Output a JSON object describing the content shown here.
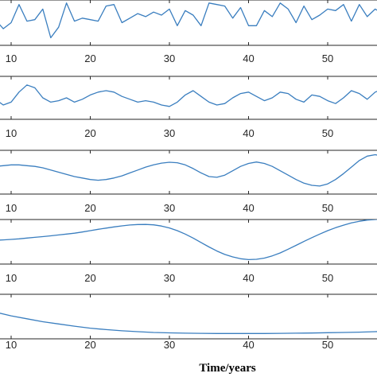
{
  "colors": {
    "line": "#3a7ebf",
    "axes": "#262626",
    "background": "#ffffff"
  },
  "chart_data": [
    {
      "type": "line",
      "xlim": [
        4,
        57
      ],
      "ylim": [
        -1.5,
        1.5
      ],
      "xticks": [
        10,
        20,
        30,
        40,
        50
      ],
      "xtick_labels": [
        "10",
        "20",
        "30",
        "40",
        "50"
      ],
      "grid": false,
      "series": [
        {
          "x": [
            4,
            5,
            6,
            7,
            8,
            9,
            10,
            11,
            12,
            13,
            14,
            15,
            16,
            17,
            18,
            19,
            20,
            21,
            22,
            23,
            24,
            25,
            26,
            27,
            28,
            29,
            30,
            31,
            32,
            33,
            34,
            35,
            36,
            37,
            38,
            39,
            40,
            41,
            42,
            43,
            44,
            45,
            46,
            47,
            48,
            49,
            50,
            51,
            52,
            53,
            54,
            55,
            56,
            57
          ],
          "values": [
            0.0,
            0.6,
            0.1,
            1.3,
            0.2,
            -0.4,
            0.0,
            1.2,
            0.1,
            0.2,
            0.9,
            -1.0,
            -0.3,
            1.3,
            0.1,
            0.3,
            0.2,
            0.1,
            1.1,
            1.2,
            0.0,
            0.3,
            0.6,
            0.4,
            0.7,
            0.5,
            0.9,
            -0.2,
            0.8,
            0.5,
            -0.2,
            1.3,
            1.2,
            1.1,
            0.3,
            1.0,
            -0.2,
            -0.2,
            0.8,
            0.4,
            1.3,
            0.9,
            0.0,
            1.1,
            0.2,
            0.5,
            0.9,
            0.8,
            1.2,
            0.1,
            1.2,
            0.4,
            0.9,
            0.6
          ]
        }
      ]
    },
    {
      "type": "line",
      "xlim": [
        4,
        57
      ],
      "ylim": [
        -1.5,
        1.5
      ],
      "xticks": [
        10,
        20,
        30,
        40,
        50
      ],
      "xtick_labels": [
        "10",
        "20",
        "30",
        "40",
        "50"
      ],
      "grid": false,
      "series": [
        {
          "x": [
            4,
            5,
            6,
            7,
            8,
            9,
            10,
            11,
            12,
            13,
            14,
            15,
            16,
            17,
            18,
            19,
            20,
            21,
            22,
            23,
            24,
            25,
            26,
            27,
            28,
            29,
            30,
            31,
            32,
            33,
            34,
            35,
            36,
            37,
            38,
            39,
            40,
            41,
            42,
            43,
            44,
            45,
            46,
            47,
            48,
            49,
            50,
            51,
            52,
            53,
            54,
            55,
            56,
            57
          ],
          "values": [
            -0.7,
            -0.5,
            -0.7,
            -0.3,
            -0.1,
            -0.5,
            -0.3,
            0.4,
            0.9,
            0.7,
            0.0,
            -0.3,
            -0.2,
            0.0,
            -0.3,
            -0.1,
            0.2,
            0.4,
            0.5,
            0.4,
            0.1,
            -0.1,
            -0.3,
            -0.2,
            -0.3,
            -0.5,
            -0.6,
            -0.3,
            0.2,
            0.5,
            0.1,
            -0.3,
            -0.5,
            -0.4,
            0.0,
            0.3,
            0.4,
            0.1,
            -0.2,
            0.0,
            0.4,
            0.3,
            -0.1,
            -0.3,
            0.2,
            0.1,
            -0.2,
            -0.4,
            0.0,
            0.5,
            0.3,
            -0.1,
            0.4,
            0.6
          ]
        }
      ]
    },
    {
      "type": "line",
      "xlim": [
        4,
        57
      ],
      "ylim": [
        -1.5,
        1.5
      ],
      "xticks": [
        10,
        20,
        30,
        40,
        50
      ],
      "xtick_labels": [
        "10",
        "20",
        "30",
        "40",
        "50"
      ],
      "grid": false,
      "series": [
        {
          "x": [
            4,
            5,
            6,
            7,
            8,
            9,
            10,
            11,
            12,
            13,
            14,
            15,
            16,
            17,
            18,
            19,
            20,
            21,
            22,
            23,
            24,
            25,
            26,
            27,
            28,
            29,
            30,
            31,
            32,
            33,
            34,
            35,
            36,
            37,
            38,
            39,
            40,
            41,
            42,
            43,
            44,
            45,
            46,
            47,
            48,
            49,
            50,
            51,
            52,
            53,
            54,
            55,
            56,
            57
          ],
          "values": [
            0.1,
            0.2,
            0.3,
            0.4,
            0.4,
            0.45,
            0.5,
            0.5,
            0.45,
            0.4,
            0.3,
            0.15,
            0.0,
            -0.15,
            -0.3,
            -0.4,
            -0.5,
            -0.55,
            -0.5,
            -0.4,
            -0.25,
            -0.05,
            0.15,
            0.35,
            0.5,
            0.62,
            0.68,
            0.65,
            0.5,
            0.25,
            -0.05,
            -0.3,
            -0.35,
            -0.2,
            0.1,
            0.4,
            0.6,
            0.7,
            0.6,
            0.4,
            0.1,
            -0.2,
            -0.5,
            -0.75,
            -0.9,
            -0.95,
            -0.8,
            -0.5,
            -0.1,
            0.35,
            0.8,
            1.1,
            1.2,
            1.1
          ]
        }
      ]
    },
    {
      "type": "line",
      "xlim": [
        4,
        57
      ],
      "ylim": [
        -1.5,
        1.5
      ],
      "xticks": [
        10,
        20,
        30,
        40,
        50
      ],
      "xtick_labels": [
        "10",
        "20",
        "30",
        "40",
        "50"
      ],
      "grid": false,
      "series": [
        {
          "x": [
            4,
            5,
            6,
            7,
            8,
            9,
            10,
            11,
            12,
            13,
            14,
            15,
            16,
            17,
            18,
            19,
            20,
            21,
            22,
            23,
            24,
            25,
            26,
            27,
            28,
            29,
            30,
            31,
            32,
            33,
            34,
            35,
            36,
            37,
            38,
            39,
            40,
            41,
            42,
            43,
            44,
            45,
            46,
            47,
            48,
            49,
            50,
            51,
            52,
            53,
            54,
            55,
            56,
            57
          ],
          "values": [
            0.0,
            0.02,
            0.05,
            0.08,
            0.1,
            0.13,
            0.16,
            0.2,
            0.25,
            0.3,
            0.35,
            0.4,
            0.46,
            0.52,
            0.58,
            0.66,
            0.75,
            0.84,
            0.92,
            1.0,
            1.07,
            1.13,
            1.16,
            1.17,
            1.14,
            1.06,
            0.93,
            0.75,
            0.52,
            0.25,
            -0.05,
            -0.35,
            -0.62,
            -0.85,
            -1.02,
            -1.14,
            -1.2,
            -1.18,
            -1.1,
            -0.95,
            -0.75,
            -0.5,
            -0.24,
            0.02,
            0.28,
            0.52,
            0.75,
            0.95,
            1.12,
            1.27,
            1.38,
            1.46,
            1.5,
            1.52
          ]
        }
      ]
    },
    {
      "type": "line",
      "xlim": [
        4,
        57
      ],
      "ylim": [
        -1.5,
        1.5
      ],
      "xticks": [
        10,
        20,
        30,
        40,
        50
      ],
      "xtick_labels": [
        "10",
        "20",
        "30",
        "40",
        "50"
      ],
      "xlabel": "Time/years",
      "grid": false,
      "series": [
        {
          "x": [
            4,
            6,
            8,
            10,
            12,
            14,
            16,
            18,
            20,
            22,
            24,
            26,
            28,
            30,
            32,
            34,
            36,
            38,
            40,
            42,
            44,
            46,
            48,
            50,
            52,
            54,
            56,
            57
          ],
          "values": [
            0.95,
            0.6,
            0.3,
            0.05,
            -0.15,
            -0.35,
            -0.5,
            -0.65,
            -0.78,
            -0.88,
            -0.96,
            -1.02,
            -1.07,
            -1.1,
            -1.12,
            -1.13,
            -1.14,
            -1.14,
            -1.14,
            -1.14,
            -1.13,
            -1.12,
            -1.11,
            -1.09,
            -1.07,
            -1.05,
            -1.02,
            -1.0
          ]
        }
      ]
    }
  ]
}
